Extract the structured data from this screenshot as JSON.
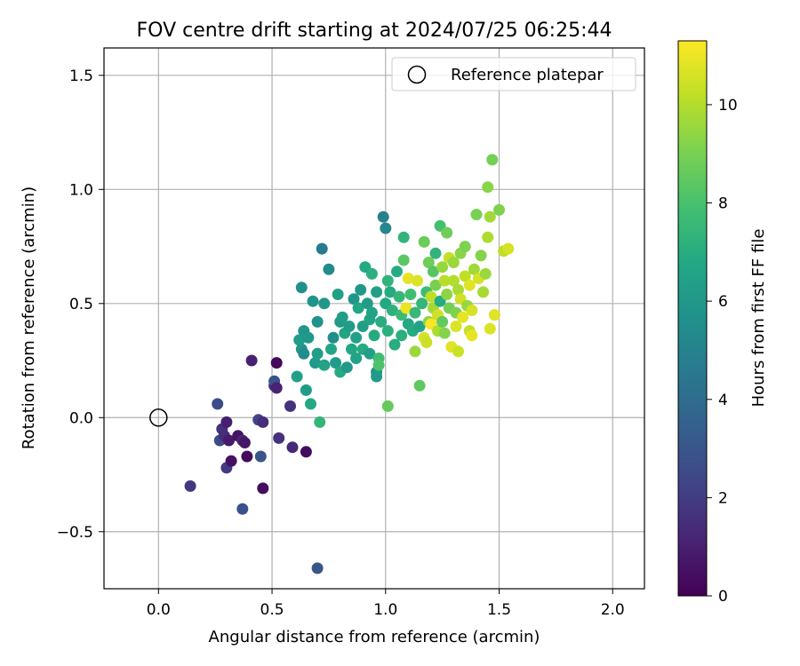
{
  "chart_data": {
    "type": "scatter",
    "title": "FOV centre drift starting at 2024/07/25 06:25:44",
    "xlabel": "Angular distance from reference (arcmin)",
    "ylabel": "Rotation from reference (arcmin)",
    "xlim": [
      -0.24,
      2.14
    ],
    "ylim": [
      -0.75,
      1.62
    ],
    "xticks": [
      0.0,
      0.5,
      1.0,
      1.5,
      2.0
    ],
    "xtick_labels": [
      "0.0",
      "0.5",
      "1.0",
      "1.5",
      "2.0"
    ],
    "yticks": [
      -0.5,
      0.0,
      0.5,
      1.0,
      1.5
    ],
    "ytick_labels": [
      "−0.5",
      "0.0",
      "0.5",
      "1.0",
      "1.5"
    ],
    "grid": true,
    "legend": {
      "placement": "upper-right",
      "entries": [
        "Reference platepar"
      ]
    },
    "reference_point": {
      "x": 0.0,
      "y": 0.0,
      "label": "Reference platepar"
    },
    "colorbar": {
      "label": "Hours from first FF file",
      "colormap": "viridis",
      "range": [
        0,
        11.3
      ],
      "ticks": [
        0,
        2,
        4,
        6,
        8,
        10
      ],
      "tick_labels": [
        "0",
        "2",
        "4",
        "6",
        "8",
        "10"
      ]
    },
    "points": [
      [
        0.14,
        -0.3,
        1.8
      ],
      [
        0.26,
        0.06,
        2.6
      ],
      [
        0.27,
        -0.1,
        2.5
      ],
      [
        0.28,
        -0.05,
        1.6
      ],
      [
        0.29,
        -0.08,
        1.4
      ],
      [
        0.3,
        -0.22,
        1.9
      ],
      [
        0.3,
        -0.02,
        1.0
      ],
      [
        0.31,
        -0.1,
        0.8
      ],
      [
        0.32,
        -0.19,
        0.5
      ],
      [
        0.35,
        -0.08,
        0.6
      ],
      [
        0.37,
        -0.1,
        1.2
      ],
      [
        0.38,
        -0.11,
        0.7
      ],
      [
        0.37,
        -0.4,
        2.8
      ],
      [
        0.39,
        -0.17,
        0.3
      ],
      [
        0.41,
        0.25,
        1.0
      ],
      [
        0.44,
        -0.01,
        2.3
      ],
      [
        0.45,
        -0.17,
        2.9
      ],
      [
        0.46,
        -0.02,
        1.5
      ],
      [
        0.46,
        -0.31,
        0.4
      ],
      [
        0.51,
        0.14,
        1.2
      ],
      [
        0.51,
        0.16,
        2.9
      ],
      [
        0.52,
        0.24,
        0.2
      ],
      [
        0.52,
        0.13,
        1.1
      ],
      [
        0.53,
        -0.09,
        1.6
      ],
      [
        0.58,
        0.05,
        1.6
      ],
      [
        0.59,
        -0.13,
        1.3
      ],
      [
        0.65,
        -0.15,
        0.4
      ],
      [
        0.7,
        -0.66,
        3.0
      ],
      [
        0.61,
        0.18,
        6.4
      ],
      [
        0.62,
        0.34,
        6.2
      ],
      [
        0.63,
        0.3,
        5.8
      ],
      [
        0.63,
        0.57,
        5.6
      ],
      [
        0.64,
        0.38,
        5.9
      ],
      [
        0.64,
        0.28,
        5.4
      ],
      [
        0.65,
        0.12,
        6.2
      ],
      [
        0.66,
        0.35,
        6.0
      ],
      [
        0.67,
        0.06,
        6.8
      ],
      [
        0.68,
        0.51,
        5.8
      ],
      [
        0.69,
        0.24,
        6.1
      ],
      [
        0.7,
        0.42,
        5.7
      ],
      [
        0.7,
        0.28,
        6.3
      ],
      [
        0.71,
        -0.02,
        7.4
      ],
      [
        0.72,
        0.74,
        4.6
      ],
      [
        0.73,
        0.23,
        6.5
      ],
      [
        0.73,
        0.5,
        6.0
      ],
      [
        0.75,
        0.65,
        5.4
      ],
      [
        0.76,
        0.3,
        6.7
      ],
      [
        0.77,
        0.35,
        5.5
      ],
      [
        0.78,
        0.24,
        6.2
      ],
      [
        0.79,
        0.54,
        6.4
      ],
      [
        0.8,
        0.42,
        6.1
      ],
      [
        0.8,
        0.2,
        6.9
      ],
      [
        0.81,
        0.44,
        6.3
      ],
      [
        0.82,
        0.37,
        6.6
      ],
      [
        0.83,
        0.22,
        6.0
      ],
      [
        0.84,
        0.4,
        6.2
      ],
      [
        0.85,
        0.3,
        6.8
      ],
      [
        0.86,
        0.52,
        5.9
      ],
      [
        0.87,
        0.35,
        6.4
      ],
      [
        0.87,
        0.26,
        6.5
      ],
      [
        0.88,
        0.48,
        6.7
      ],
      [
        0.89,
        0.56,
        6.0
      ],
      [
        0.9,
        0.4,
        6.3
      ],
      [
        0.9,
        0.3,
        6.9
      ],
      [
        0.91,
        0.66,
        6.8
      ],
      [
        0.92,
        0.5,
        6.2
      ],
      [
        0.93,
        0.43,
        6.6
      ],
      [
        0.93,
        0.28,
        6.4
      ],
      [
        0.94,
        0.63,
        7.1
      ],
      [
        0.94,
        0.46,
        6.5
      ],
      [
        0.95,
        0.36,
        6.9
      ],
      [
        0.96,
        0.55,
        6.4
      ],
      [
        0.96,
        0.2,
        5.9
      ],
      [
        0.96,
        0.18,
        6.1
      ],
      [
        0.97,
        0.26,
        7.8
      ],
      [
        0.97,
        0.23,
        8.1
      ],
      [
        0.98,
        0.42,
        7.0
      ],
      [
        0.99,
        0.88,
        4.9
      ],
      [
        1.0,
        0.83,
        5.2
      ],
      [
        1.0,
        0.5,
        6.8
      ],
      [
        1.01,
        0.6,
        7.3
      ],
      [
        1.01,
        0.38,
        7.1
      ],
      [
        1.01,
        0.05,
        8.6
      ],
      [
        1.02,
        0.55,
        6.9
      ],
      [
        1.03,
        0.47,
        7.2
      ],
      [
        1.04,
        0.32,
        7.0
      ],
      [
        1.05,
        0.64,
        6.9
      ],
      [
        1.06,
        0.53,
        7.4
      ],
      [
        1.07,
        0.45,
        7.6
      ],
      [
        1.07,
        0.36,
        7.1
      ],
      [
        1.08,
        0.79,
        7.3
      ],
      [
        1.08,
        0.69,
        8.4
      ],
      [
        1.09,
        0.48,
        11.0
      ],
      [
        1.1,
        0.61,
        10.9
      ],
      [
        1.1,
        0.41,
        6.8
      ],
      [
        1.11,
        0.54,
        7.8
      ],
      [
        1.12,
        0.38,
        6.9
      ],
      [
        1.13,
        0.46,
        7.5
      ],
      [
        1.13,
        0.29,
        9.6
      ],
      [
        1.14,
        0.6,
        10.7
      ],
      [
        1.15,
        0.14,
        8.5
      ],
      [
        1.15,
        0.4,
        6.5
      ],
      [
        1.16,
        0.5,
        7.4
      ],
      [
        1.17,
        0.77,
        8.7
      ],
      [
        1.17,
        0.35,
        10.6
      ],
      [
        1.18,
        0.55,
        7.7
      ],
      [
        1.18,
        0.33,
        10.4
      ],
      [
        1.19,
        0.68,
        8.8
      ],
      [
        1.19,
        0.42,
        9.3
      ],
      [
        1.2,
        0.53,
        10.2
      ],
      [
        1.2,
        0.41,
        11.2
      ],
      [
        1.21,
        0.64,
        8.3
      ],
      [
        1.21,
        0.48,
        9.7
      ],
      [
        1.22,
        0.72,
        7.3
      ],
      [
        1.22,
        0.58,
        9.0
      ],
      [
        1.23,
        0.45,
        10.5
      ],
      [
        1.23,
        0.38,
        9.9
      ],
      [
        1.24,
        0.84,
        7.9
      ],
      [
        1.24,
        0.51,
        6.9
      ],
      [
        1.25,
        0.66,
        9.5
      ],
      [
        1.25,
        0.42,
        8.6
      ],
      [
        1.26,
        0.6,
        10.1
      ],
      [
        1.26,
        0.37,
        9.2
      ],
      [
        1.27,
        0.81,
        8.8
      ],
      [
        1.27,
        0.54,
        9.4
      ],
      [
        1.28,
        0.7,
        10.3
      ],
      [
        1.28,
        0.48,
        8.9
      ],
      [
        1.29,
        0.31,
        10.8
      ],
      [
        1.3,
        0.68,
        9.6
      ],
      [
        1.3,
        0.6,
        10.0
      ],
      [
        1.31,
        0.46,
        9.1
      ],
      [
        1.31,
        0.4,
        10.7
      ],
      [
        1.32,
        0.29,
        10.4
      ],
      [
        1.32,
        0.56,
        9.8
      ],
      [
        1.33,
        0.72,
        9.3
      ],
      [
        1.33,
        0.52,
        10.5
      ],
      [
        1.34,
        0.44,
        10.9
      ],
      [
        1.35,
        0.75,
        9.1
      ],
      [
        1.35,
        0.62,
        10.2
      ],
      [
        1.36,
        0.49,
        9.5
      ],
      [
        1.37,
        0.58,
        10.8
      ],
      [
        1.37,
        0.38,
        10.3
      ],
      [
        1.38,
        0.47,
        10.6
      ],
      [
        1.38,
        0.36,
        10.9
      ],
      [
        1.39,
        0.65,
        9.7
      ],
      [
        1.4,
        0.89,
        9.0
      ],
      [
        1.41,
        0.61,
        10.6
      ],
      [
        1.42,
        0.71,
        9.2
      ],
      [
        1.43,
        0.55,
        9.8
      ],
      [
        1.44,
        0.63,
        9.6
      ],
      [
        1.45,
        1.01,
        9.3
      ],
      [
        1.45,
        0.79,
        9.9
      ],
      [
        1.46,
        0.39,
        10.7
      ],
      [
        1.46,
        0.88,
        9.7
      ],
      [
        1.47,
        1.13,
        8.9
      ],
      [
        1.48,
        0.45,
        10.8
      ],
      [
        1.5,
        0.91,
        9.1
      ],
      [
        1.52,
        0.73,
        10.2
      ],
      [
        1.54,
        0.74,
        10.6
      ]
    ]
  }
}
